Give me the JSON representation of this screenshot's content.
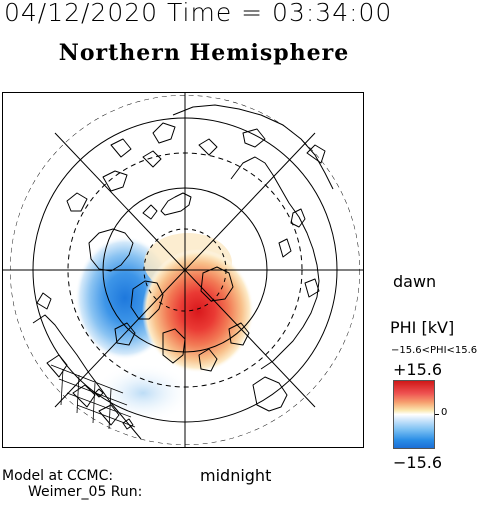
{
  "header": {
    "date_time": "04/12/2020 Time = 03:34:00",
    "hemisphere": "Northern Hemisphere"
  },
  "map": {
    "label_dawn": "dawn",
    "label_midnight": "midnight",
    "potential_max_kv": 15.6,
    "potential_min_kv": -15.6
  },
  "colorbar": {
    "title": "PHI [kV]",
    "range_text": "−15.6<PHI<15.6",
    "max_label": "+15.6",
    "mid_label": "0",
    "min_label": "−15.6",
    "colors": {
      "positive": "#d01818",
      "neutral": "#ffffff",
      "negative": "#1c6fd6"
    }
  },
  "footer": {
    "model_line": "Model at CCMC:",
    "run_line": "Weimer_05 Run:"
  }
}
